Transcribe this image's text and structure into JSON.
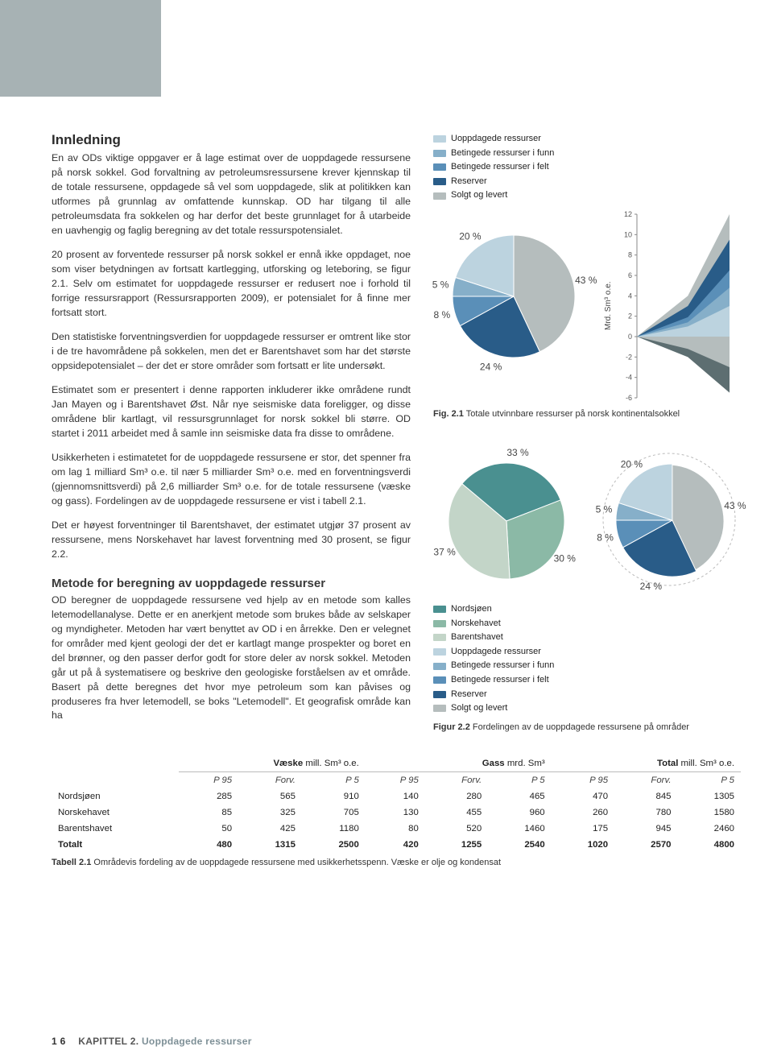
{
  "topbox_color": "#a7b2b4",
  "heading": "Innledning",
  "paragraphs": [
    "En av ODs viktige oppgaver er å lage estimat over de uoppdagede ressursene på norsk sokkel. God forvaltning av petroleumsressursene krever kjennskap til de totale ressursene, oppdagede så vel som uoppdagede, slik at politikken kan utformes på grunnlag av omfattende kunnskap. OD har tilgang til alle petroleumsdata fra sokkelen og har derfor det beste grunnlaget for å utarbeide en uavhengig og faglig beregning av det totale ressurspotensialet.",
    "20 prosent av forventede ressurser på norsk sokkel er ennå ikke oppdaget, noe som viser betydningen av fortsatt kartlegging, utforsking og leteboring, se figur 2.1. Selv om estimatet for uoppdagede ressurser er redusert noe i forhold til forrige ressursrapport (Ressursrapporten 2009), er potensialet for å finne mer fortsatt stort.",
    "Den statistiske forventningsverdien for uoppdagede ressurser er omtrent like stor i de tre havområdene på sokkelen, men det er Barentshavet som har det største oppsidepotensialet – der det er store områder som fortsatt er lite undersøkt.",
    "Estimatet som er presentert i denne rapporten inkluderer ikke områdene rundt Jan Mayen og i Barentshavet Øst. Når nye seismiske data foreligger, og disse områdene blir kartlagt, vil ressursgrunnlaget for norsk sokkel bli større. OD startet i 2011 arbeidet med å samle inn seismiske data fra disse to områdene.",
    "Usikkerheten i estimatetet for de uoppdagede ressursene er stor, det spenner fra om lag 1 milliard Sm³ o.e. til nær 5 milliarder Sm³ o.e. med en forventningsverdi (gjennomsnittsverdi) på 2,6 milliarder Sm³ o.e. for de totale ressursene (væske og gass). Fordelingen av de uoppdagede ressursene er vist i tabell 2.1.",
    "Det er høyest forventninger til Barentshavet, der estimatet utgjør 37 prosent av ressursene, mens Norskehavet har lavest forventning med 30 prosent, se figur 2.2."
  ],
  "subheading": "Metode for beregning av uoppdagede ressurser",
  "sub_para": "OD beregner de uoppdagede ressursene ved hjelp av en metode som kalles letemodellanalyse. Dette er en anerkjent metode som brukes både av selskaper og myndigheter. Metoden har vært benyttet av OD i en årrekke. Den er velegnet for områder med kjent geologi der det er kartlagt mange prospekter og boret en del brønner, og den passer derfor godt for store deler av norsk sokkel.  Metoden går ut på å systematisere og beskrive den geologiske forståelsen av et område. Basert på dette beregnes det hvor mye petroleum som kan påvises og produseres fra hver letemodell, se boks \"Letemodell\". Et geografisk område kan ha",
  "pie1": {
    "slices": [
      {
        "label": "43 %",
        "value": 43,
        "color": "#b5bdbd"
      },
      {
        "label": "24 %",
        "value": 24,
        "color": "#295c88"
      },
      {
        "label": "8 %",
        "value": 8,
        "color": "#5a8fb8"
      },
      {
        "label": "5 %",
        "value": 5,
        "color": "#86afc9"
      },
      {
        "label": "20 %",
        "value": 20,
        "color": "#bcd3df"
      }
    ],
    "legend": [
      {
        "label": "Uoppdagede ressurser",
        "color": "#bcd3df"
      },
      {
        "label": "Betingede ressurser  i funn",
        "color": "#86afc9"
      },
      {
        "label": "Betingede ressurser i felt",
        "color": "#5a8fb8"
      },
      {
        "label": "Reserver",
        "color": "#295c88"
      },
      {
        "label": "Solgt og levert",
        "color": "#b5bdbd"
      }
    ]
  },
  "area": {
    "ylabel": "Mrd. Sm³ o.e.",
    "ylim": [
      -6,
      12
    ],
    "yticks": [
      12,
      10,
      8,
      6,
      4,
      2,
      0,
      -2,
      -4,
      -6
    ],
    "colors": [
      "#bcd3df",
      "#86afc9",
      "#5a8fb8",
      "#295c88",
      "#b5bdbd",
      "#5d6e71"
    ]
  },
  "fig1_caption": {
    "bold": "Fig. 2.1",
    "text": "  Totale utvinnbare ressurser på norsk kontinentalsokkel"
  },
  "pie2a": {
    "slices": [
      {
        "label": "33 %",
        "value": 33,
        "color": "#4a9090"
      },
      {
        "label": "30 %",
        "value": 30,
        "color": "#8bb9a6"
      },
      {
        "label": "37 %",
        "value": 37,
        "color": "#c3d5c8"
      }
    ]
  },
  "pie2b": {
    "slices": [
      {
        "label": "43 %",
        "value": 43,
        "color": "#b5bdbd"
      },
      {
        "label": "24 %",
        "value": 24,
        "color": "#295c88"
      },
      {
        "label": "8 %",
        "value": 8,
        "color": "#5a8fb8"
      },
      {
        "label": "5 %",
        "value": 5,
        "color": "#86afc9"
      },
      {
        "label": "20 %",
        "value": 20,
        "color": "#bcd3df"
      }
    ]
  },
  "legend2": [
    {
      "label": "Nordsjøen",
      "color": "#4a9090"
    },
    {
      "label": "Norskehavet",
      "color": "#8bb9a6"
    },
    {
      "label": "Barentshavet",
      "color": "#c3d5c8"
    },
    {
      "label": "Uoppdagede ressurser",
      "color": "#bcd3df"
    },
    {
      "label": "Betingede ressurser  i funn",
      "color": "#86afc9"
    },
    {
      "label": "Betingede ressurser i felt",
      "color": "#5a8fb8"
    },
    {
      "label": "Reserver",
      "color": "#295c88"
    },
    {
      "label": "Solgt og levert",
      "color": "#b5bdbd"
    }
  ],
  "fig2_caption": {
    "bold": "Figur 2.2",
    "text": "  Fordelingen av de uoppdagede ressursene på områder"
  },
  "table": {
    "group_headers": [
      {
        "label": "Væske",
        "unit": " mill. Sm³ o.e."
      },
      {
        "label": "Gass",
        "unit": " mrd. Sm³"
      },
      {
        "label": "Total",
        "unit": " mill. Sm³ o.e."
      }
    ],
    "sub_headers": [
      "P 95",
      "Forv.",
      "P 5"
    ],
    "rows": [
      {
        "name": "Nordsjøen",
        "cells": [
          285,
          565,
          910,
          140,
          280,
          465,
          470,
          845,
          1305
        ]
      },
      {
        "name": "Norskehavet",
        "cells": [
          85,
          325,
          705,
          130,
          455,
          960,
          260,
          780,
          1580
        ]
      },
      {
        "name": "Barentshavet",
        "cells": [
          50,
          425,
          1180,
          80,
          520,
          1460,
          175,
          945,
          2460
        ]
      },
      {
        "name": "Totalt",
        "cells": [
          480,
          1315,
          2500,
          420,
          1255,
          2540,
          1020,
          2570,
          4800
        ],
        "total": true
      }
    ]
  },
  "tab_caption": {
    "bold": "Tabell 2.1",
    "text": "  Områdevis fordeling av de uoppdagede ressursene med usikkerhetsspenn. Væske er olje og kondensat"
  },
  "footer": {
    "page": "1 6",
    "chapter": "KAPITTEL 2.",
    "title": "Uoppdagede ressurser"
  }
}
